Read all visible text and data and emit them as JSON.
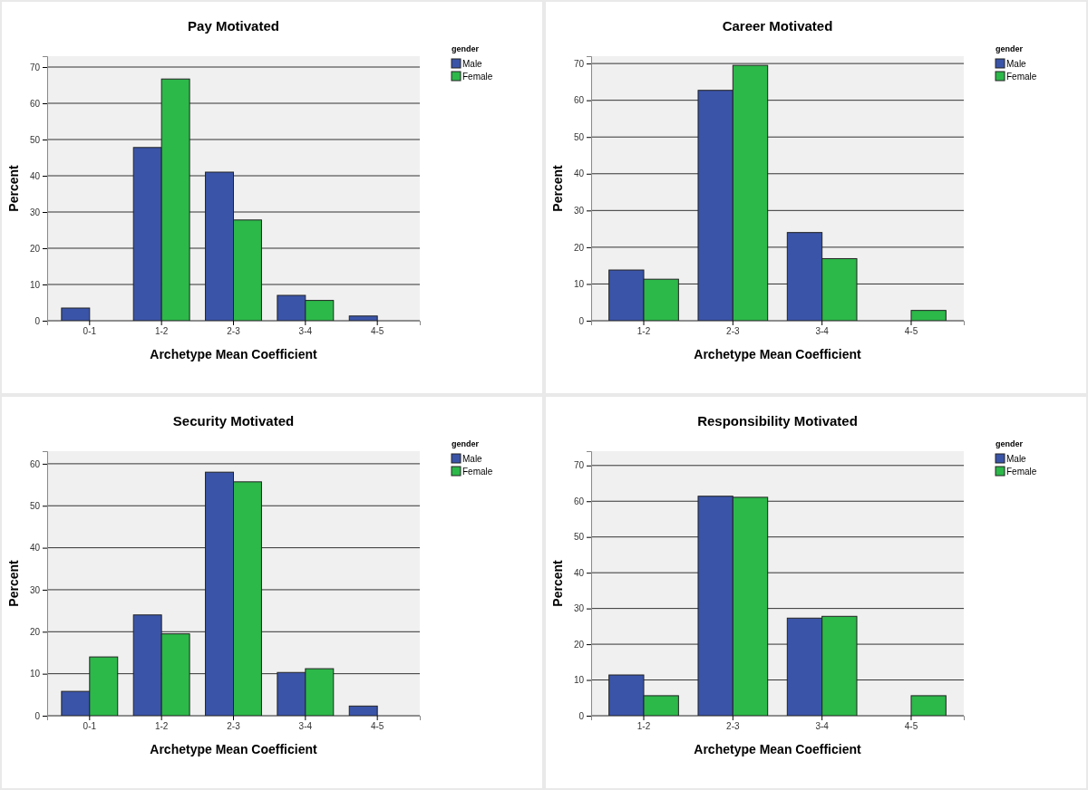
{
  "chart_data": [
    {
      "type": "bar",
      "title": "Pay Motivated",
      "xlabel": "Archetype Mean Coefficient",
      "ylabel": "Percent",
      "legend_title": "gender",
      "legend": "top right",
      "grid": "y",
      "categories": [
        "0-1",
        "1-2",
        "2-3",
        "3-4",
        "4-5"
      ],
      "ylim": [
        0,
        73
      ],
      "yticks": [
        0,
        10,
        20,
        30,
        40,
        50,
        60,
        70
      ],
      "series": [
        {
          "name": "Male",
          "color": "#3a54a8",
          "values": [
            3.5,
            47.8,
            41,
            7,
            1.3
          ]
        },
        {
          "name": "Female",
          "color": "#2db84a",
          "values": [
            0,
            66.7,
            27.8,
            5.6,
            0
          ]
        }
      ]
    },
    {
      "type": "bar",
      "title": "Career Motivated",
      "xlabel": "Archetype Mean Coefficient",
      "ylabel": "Percent",
      "legend_title": "gender",
      "legend": "top right",
      "grid": "y",
      "categories": [
        "1-2",
        "2-3",
        "3-4",
        "4-5"
      ],
      "ylim": [
        0,
        72
      ],
      "yticks": [
        0,
        10,
        20,
        30,
        40,
        50,
        60,
        70
      ],
      "series": [
        {
          "name": "Male",
          "color": "#3a54a8",
          "values": [
            13.8,
            62.7,
            24,
            0
          ]
        },
        {
          "name": "Female",
          "color": "#2db84a",
          "values": [
            11.3,
            69.5,
            16.9,
            2.8
          ]
        }
      ]
    },
    {
      "type": "bar",
      "title": "Security Motivated",
      "xlabel": "Archetype Mean Coefficient",
      "ylabel": "Percent",
      "legend_title": "gender",
      "legend": "top right",
      "grid": "y",
      "categories": [
        "0-1",
        "1-2",
        "2-3",
        "3-4",
        "4-5"
      ],
      "ylim": [
        0,
        63
      ],
      "yticks": [
        0,
        10,
        20,
        30,
        40,
        50,
        60
      ],
      "series": [
        {
          "name": "Male",
          "color": "#3a54a8",
          "values": [
            5.8,
            24,
            58,
            10.3,
            2.3
          ]
        },
        {
          "name": "Female",
          "color": "#2db84a",
          "values": [
            14,
            19.5,
            55.7,
            11.2,
            0
          ]
        }
      ]
    },
    {
      "type": "bar",
      "title": "Responsibility Motivated",
      "xlabel": "Archetype Mean Coefficient",
      "ylabel": "Percent",
      "legend_title": "gender",
      "legend": "top right",
      "grid": "y",
      "categories": [
        "1-2",
        "2-3",
        "3-4",
        "4-5"
      ],
      "ylim": [
        0,
        74
      ],
      "yticks": [
        0,
        10,
        20,
        30,
        40,
        50,
        60,
        70
      ],
      "series": [
        {
          "name": "Male",
          "color": "#3a54a8",
          "values": [
            11.4,
            61.4,
            27.3,
            0
          ]
        },
        {
          "name": "Female",
          "color": "#2db84a",
          "values": [
            5.6,
            61.1,
            27.8,
            5.6
          ]
        }
      ]
    }
  ]
}
